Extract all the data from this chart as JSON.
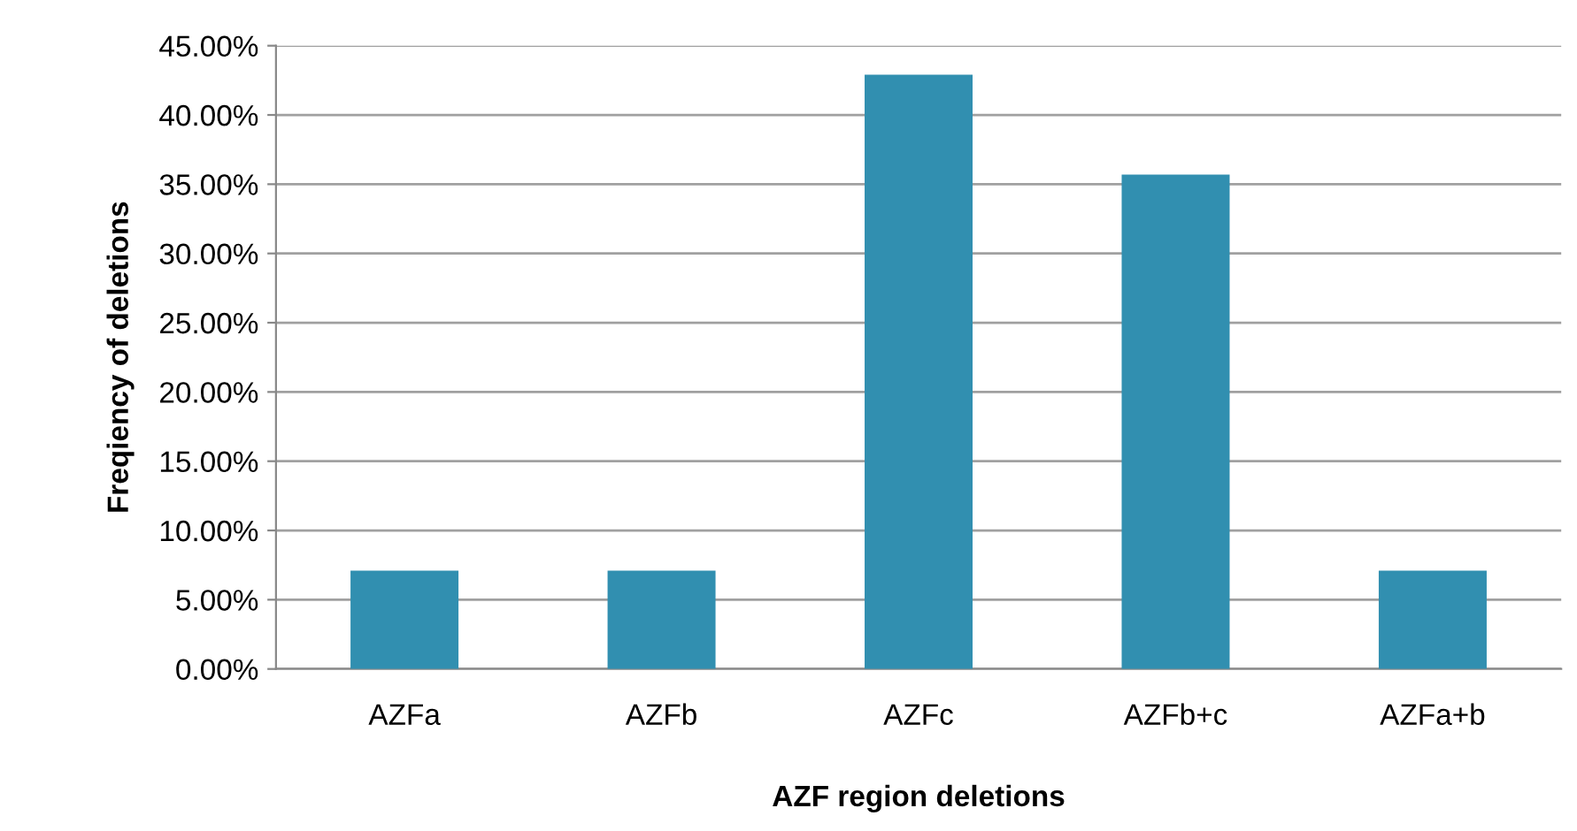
{
  "chart_data": {
    "type": "bar",
    "xlabel": "AZF region deletions",
    "ylabel": "Freqiency of deletions",
    "categories": [
      "AZFa",
      "AZFb",
      "AZFc",
      "AZFb+c",
      "AZFa+b"
    ],
    "values": [
      7.1,
      7.1,
      42.9,
      35.7,
      7.1
    ],
    "color": "#318fb0",
    "ylim": [
      0,
      45
    ],
    "yticks": [
      {
        "value": 0,
        "label": "0.00%"
      },
      {
        "value": 5,
        "label": "5.00%"
      },
      {
        "value": 10,
        "label": "10.00%"
      },
      {
        "value": 15,
        "label": "15.00%"
      },
      {
        "value": 20,
        "label": "20.00%"
      },
      {
        "value": 25,
        "label": "25.00%"
      },
      {
        "value": 30,
        "label": "30.00%"
      },
      {
        "value": 35,
        "label": "35.00%"
      },
      {
        "value": 40,
        "label": "40.00%"
      },
      {
        "value": 45,
        "label": "45.00%"
      }
    ],
    "grid": "y"
  }
}
